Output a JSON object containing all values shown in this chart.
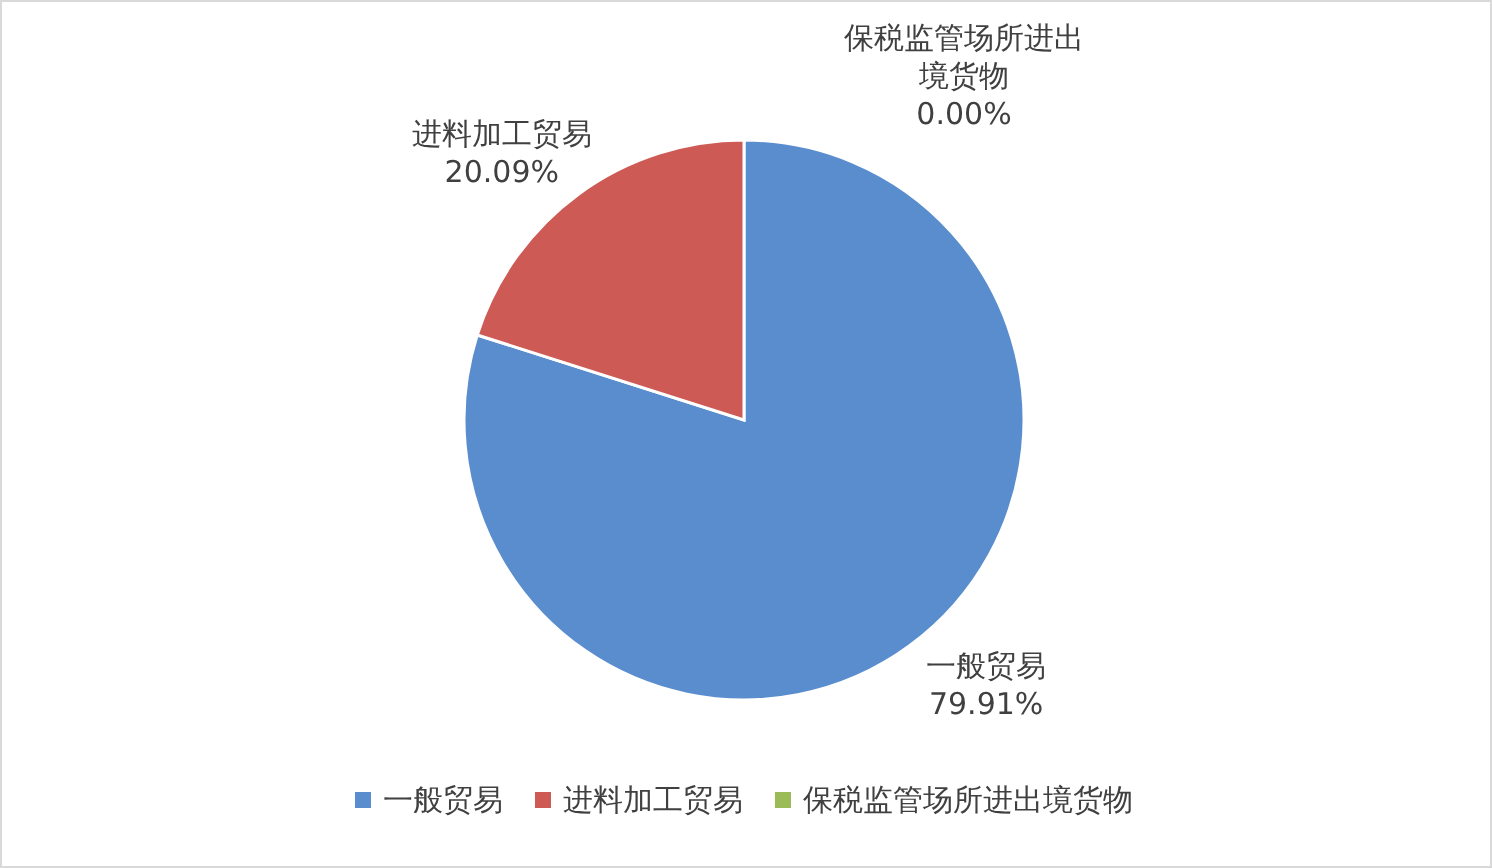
{
  "chart_data": {
    "type": "pie",
    "categories": [
      "一般贸易",
      "进料加工贸易",
      "保税监管场所进出境货物"
    ],
    "values": [
      79.91,
      20.09,
      0.0
    ],
    "colors": [
      "#5a8dcd",
      "#cd5a54",
      "#9bbb59"
    ],
    "value_labels": [
      "79.91%",
      "20.09%",
      "0.00%"
    ],
    "legend": "bottom"
  }
}
